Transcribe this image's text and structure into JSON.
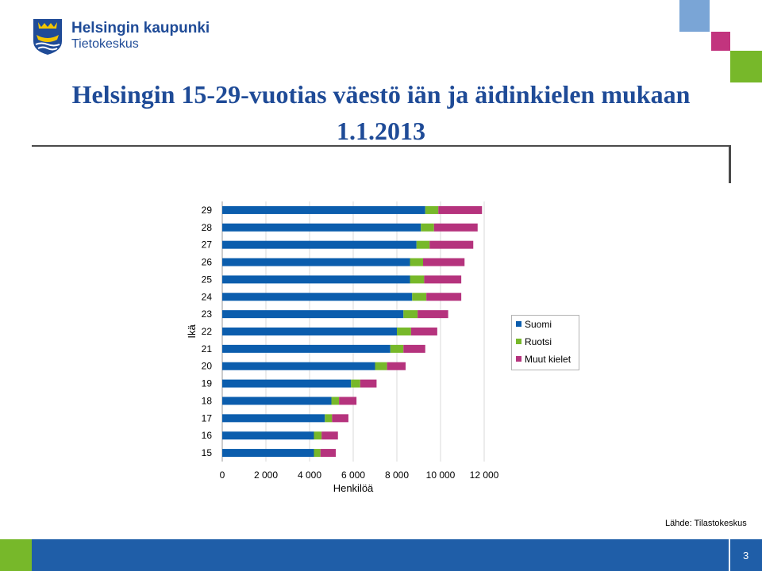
{
  "header": {
    "logo_line1": "Helsingin kaupunki",
    "logo_line2": "Tietokeskus",
    "title_line1": "Helsingin 15-29-vuotias väestö iän ja äidinkielen mukaan",
    "title_line2": "1.1.2013"
  },
  "colors": {
    "suomi": "#0b5dad",
    "ruotsi": "#77b82a",
    "muut": "#b5337d",
    "brand_blue": "#1f4b97",
    "footer_blue": "#1f5ea8",
    "deco_light_blue": "#7aa5d6",
    "deco_magenta": "#c2347e",
    "deco_green": "#77b82a"
  },
  "chart_data": {
    "type": "bar",
    "orientation": "horizontal",
    "stacked": true,
    "categories": [
      "15",
      "16",
      "17",
      "18",
      "19",
      "20",
      "21",
      "22",
      "23",
      "24",
      "25",
      "26",
      "27",
      "28",
      "29"
    ],
    "series": [
      {
        "name": "Suomi",
        "values": [
          4200,
          4200,
          4700,
          5000,
          5900,
          7000,
          7700,
          8000,
          8300,
          8700,
          8600,
          8600,
          8900,
          9100,
          9300
        ]
      },
      {
        "name": "Ruotsi",
        "values": [
          300,
          350,
          330,
          350,
          420,
          550,
          600,
          650,
          650,
          650,
          650,
          600,
          600,
          600,
          600
        ]
      },
      {
        "name": "Muut kielet",
        "values": [
          700,
          750,
          750,
          800,
          750,
          850,
          1000,
          1200,
          1400,
          1600,
          1700,
          1900,
          2000,
          2000,
          2000
        ]
      }
    ],
    "xlabel": "Henkilöä",
    "ylabel": "Ikä",
    "xlim": [
      0,
      12000
    ],
    "xticks": [
      0,
      2000,
      4000,
      6000,
      8000,
      10000,
      12000
    ],
    "xtick_labels": [
      "0",
      "2 000",
      "4 000",
      "6 000",
      "8 000",
      "10 000",
      "12 000"
    ],
    "legend": [
      "Suomi",
      "Ruotsi",
      "Muut kielet"
    ],
    "legend_position": "right",
    "grid": "vertical"
  },
  "source": "Lähde: Tilastokeskus",
  "footer": {
    "page_number": "3"
  }
}
